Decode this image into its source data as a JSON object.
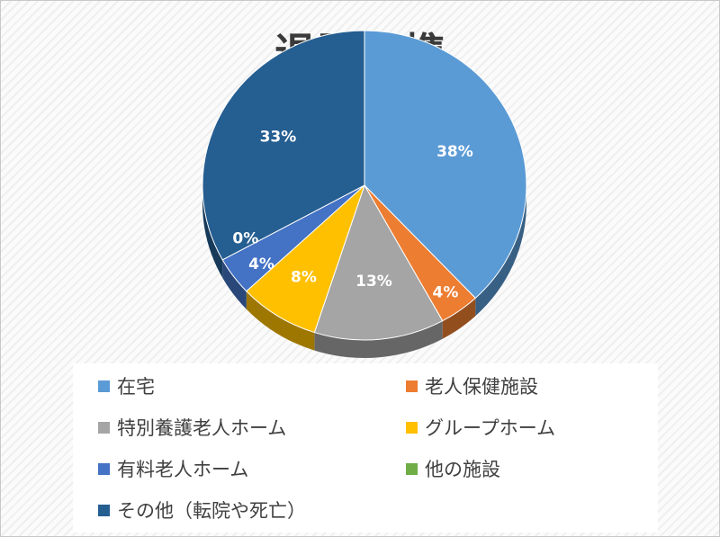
{
  "chart_data": {
    "type": "pie",
    "title": "退院連携",
    "categories": [
      "在宅",
      "老人保健施設",
      "特別養護老人ホーム",
      "グループホーム",
      "有料老人ホーム",
      "他の施設",
      "その他（転院や死亡）"
    ],
    "values": [
      38,
      4,
      13,
      8,
      4,
      0,
      33
    ],
    "labels": [
      "38%",
      "4%",
      "13%",
      "8%",
      "4%",
      "0%",
      "33%"
    ],
    "colors": [
      "#5b9bd5",
      "#ed7d31",
      "#a5a5a5",
      "#ffc000",
      "#4472c4",
      "#70ad47",
      "#255e91"
    ],
    "legend_position": "bottom"
  }
}
